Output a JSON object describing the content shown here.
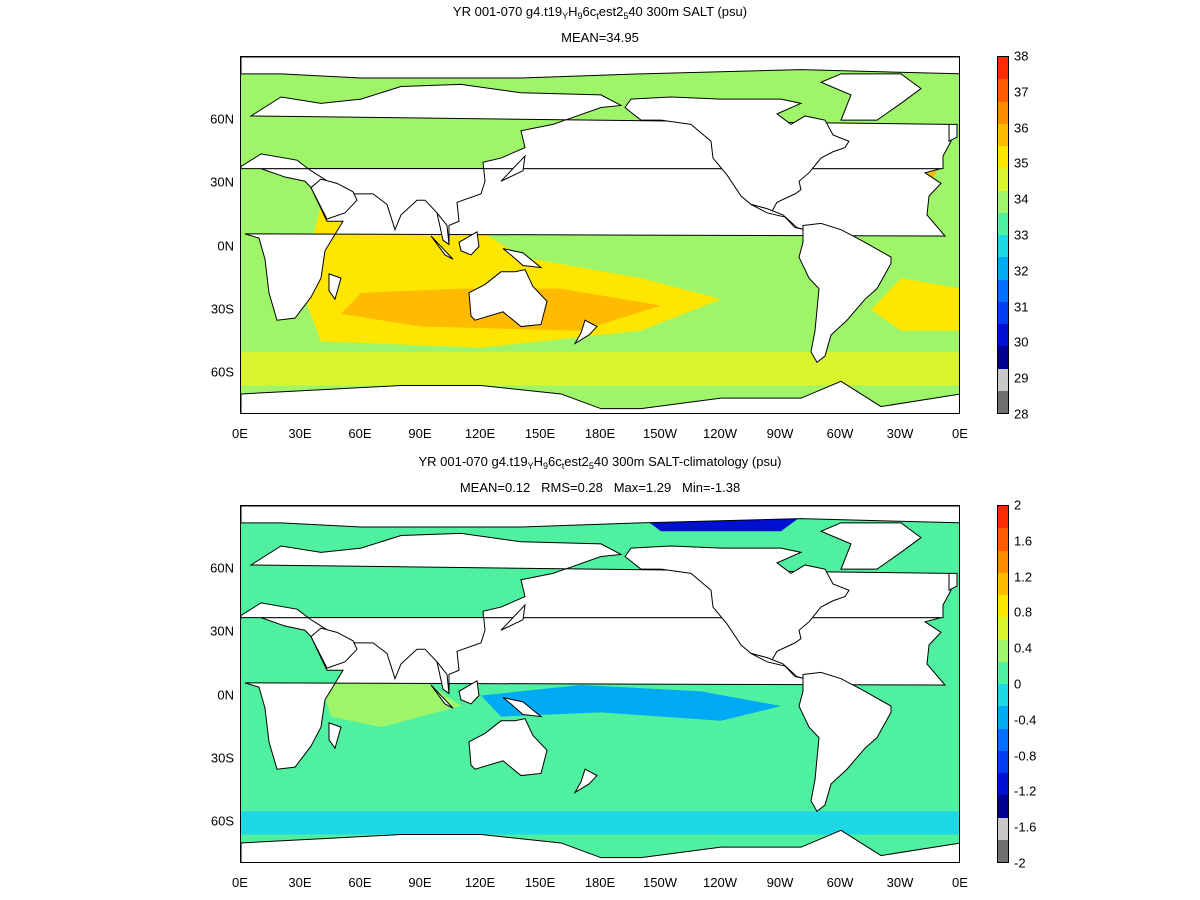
{
  "panels": [
    {
      "title_parts": [
        "YR 001-070 g4.t19",
        "Y",
        "H",
        "9",
        "6c",
        "t",
        "est2",
        "5",
        "40 300m SALT (psu)"
      ],
      "subtitle": "MEAN=34.95",
      "colorbar": {
        "labels": [
          "38",
          "37",
          "36",
          "35",
          "34",
          "33",
          "32",
          "31",
          "30",
          "29",
          "28"
        ],
        "colors": [
          "#ff2a00",
          "#ff5c00",
          "#ff8c00",
          "#ffbb00",
          "#ffe600",
          "#d9f530",
          "#9ef56a",
          "#4ff0a0",
          "#1ed8e6",
          "#00aaf5",
          "#0070ff",
          "#003cf0",
          "#0010d0",
          "#000090",
          "#c8c8c8",
          "#707070"
        ]
      },
      "field_colors": {
        "base": "#9ef56a",
        "warm": "#ffe600",
        "warmer": "#ffbb00",
        "hot": "#ff5c00",
        "mid": "#d9f530",
        "cool": "#4ff0a0"
      }
    },
    {
      "title_parts": [
        "YR 001-070 g4.t19",
        "Y",
        "H",
        "9",
        "6c",
        "t",
        "est2",
        "5",
        "40 300m SALT-climatology (psu)"
      ],
      "subtitle": "MEAN=0.12   RMS=0.28   Max=1.29   Min=-1.38",
      "colorbar": {
        "labels": [
          "2",
          "1.6",
          "1.2",
          "0.8",
          "0.4",
          "0",
          "-0.4",
          "-0.8",
          "-1.2",
          "-1.6",
          "-2"
        ],
        "colors": [
          "#ff2a00",
          "#ff5c00",
          "#ff8c00",
          "#ffbb00",
          "#ffe600",
          "#d9f530",
          "#9ef56a",
          "#4ff0a0",
          "#1ed8e6",
          "#00aaf5",
          "#0070ff",
          "#003cf0",
          "#0010d0",
          "#000090",
          "#c8c8c8",
          "#707070"
        ]
      },
      "field_colors": {
        "base": "#4ff0a0",
        "warm": "#9ef56a",
        "warmer": "#d9f530",
        "hot": "#0010d0",
        "mid": "#1ed8e6",
        "cool": "#00aaf5"
      }
    }
  ],
  "x_ticks": [
    "0E",
    "30E",
    "60E",
    "90E",
    "120E",
    "150E",
    "180E",
    "150W",
    "120W",
    "90W",
    "60W",
    "30W",
    "0E"
  ],
  "y_ticks": [
    "60N",
    "30N",
    "0N",
    "30S",
    "60S"
  ]
}
